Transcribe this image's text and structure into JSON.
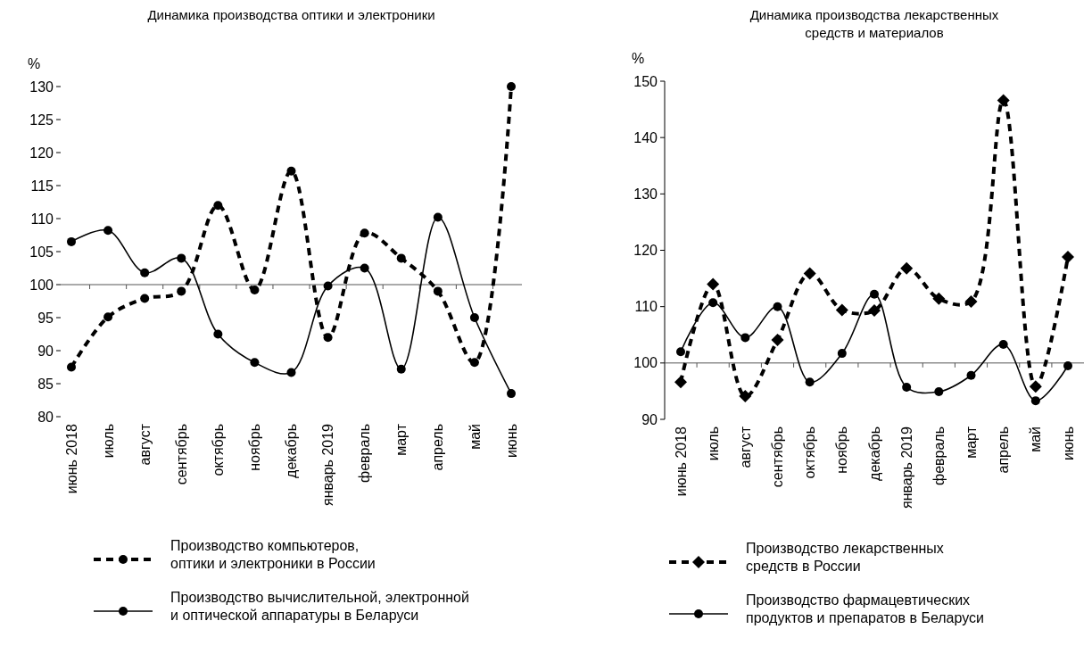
{
  "chart_data": [
    {
      "type": "line",
      "title": "Динамика производства оптики и электроники",
      "ylabel": "%",
      "categories": [
        "июнь 2018",
        "июль",
        "август",
        "сентябрь",
        "октябрь",
        "ноябрь",
        "декабрь",
        "январь 2019",
        "февраль",
        "март",
        "апрель",
        "май",
        "июнь"
      ],
      "series": [
        {
          "name": "Производство компьютеров,\nоптики и электроники в России",
          "color": "#000000",
          "line_style": "dashed",
          "marker": "circle",
          "values": [
            87.5,
            95.1,
            97.9,
            99.0,
            112.0,
            99.2,
            117.2,
            92.0,
            107.8,
            104.0,
            99.0,
            88.2,
            130.0
          ]
        },
        {
          "name": "Производство вычислительной, электронной\nи оптической аппаратуры в Беларуси",
          "color": "#000000",
          "line_style": "solid",
          "marker": "circle",
          "values": [
            106.5,
            108.2,
            101.8,
            104.0,
            92.5,
            88.2,
            86.7,
            99.8,
            102.5,
            87.2,
            110.2,
            95.0,
            83.5
          ]
        }
      ],
      "ylim": [
        80,
        130
      ],
      "yticks": [
        80,
        85,
        90,
        95,
        100,
        105,
        110,
        115,
        120,
        125,
        130
      ],
      "ref_lines": [
        {
          "axis": "y",
          "value": 100
        }
      ],
      "grid": false,
      "legend": "bottom"
    },
    {
      "type": "line",
      "title": "Динамика производства лекарственных\nсредств и  материалов",
      "ylabel": "%",
      "categories": [
        "июнь 2018",
        "июль",
        "август",
        "сентябрь",
        "октябрь",
        "ноябрь",
        "декабрь",
        "январь 2019",
        "февраль",
        "март",
        "апрель",
        "май",
        "июнь"
      ],
      "series": [
        {
          "name": "Производство лекарственных\nсредств в России",
          "color": "#000000",
          "line_style": "dashed",
          "marker": "diamond",
          "values": [
            96.6,
            114.0,
            94.1,
            104.1,
            115.9,
            109.4,
            109.3,
            116.8,
            111.4,
            110.9,
            146.6,
            95.8,
            118.8
          ]
        },
        {
          "name": "Производство фармацевтических\nпродуктов и препаратов в Беларуси",
          "color": "#000000",
          "line_style": "solid",
          "marker": "circle",
          "values": [
            102.0,
            110.7,
            104.5,
            110.0,
            96.6,
            101.7,
            112.2,
            95.7,
            94.9,
            97.8,
            103.3,
            93.3,
            99.5
          ]
        }
      ],
      "ylim": [
        90,
        150
      ],
      "yticks": [
        90,
        100,
        110,
        120,
        130,
        140,
        150
      ],
      "ref_lines": [
        {
          "axis": "y",
          "value": 100
        }
      ],
      "grid": false,
      "legend": "bottom"
    }
  ]
}
